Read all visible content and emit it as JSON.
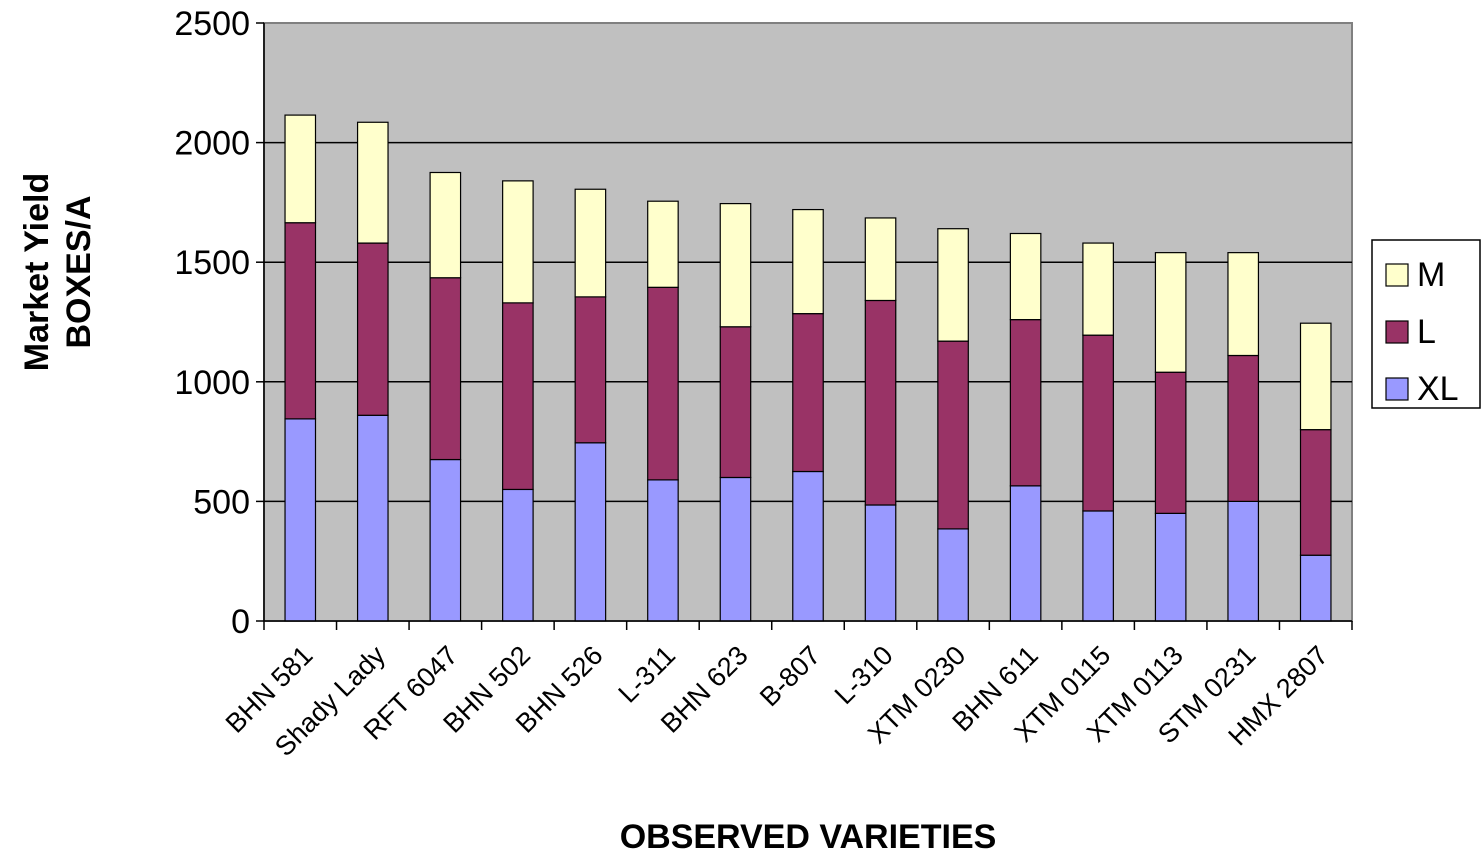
{
  "chart_data": {
    "type": "bar",
    "stacked": true,
    "title": "",
    "xlabel": "OBSERVED VARIETIES",
    "ylabel": [
      "Market Yield",
      "BOXES/A"
    ],
    "ylim": [
      0,
      2500
    ],
    "yticks": [
      0,
      500,
      1000,
      1500,
      2000,
      2500
    ],
    "grid": true,
    "legend_position": "right",
    "plot_background": "#C0C0C0",
    "categories": [
      "BHN 581",
      "Shady Lady",
      "RFT 6047",
      "BHN 502",
      "BHN 526",
      "L-311",
      "BHN 623",
      "B-807",
      "L-310",
      "XTM 0230",
      "BHN 611",
      "XTM 0115",
      "XTM 0113",
      "STM 0231",
      "HMX 2807"
    ],
    "series": [
      {
        "name": "XL",
        "color": "#9999FF",
        "values": [
          845,
          860,
          675,
          550,
          745,
          590,
          600,
          625,
          485,
          385,
          565,
          460,
          450,
          500,
          275
        ]
      },
      {
        "name": "L",
        "color": "#993366",
        "values": [
          820,
          720,
          760,
          780,
          610,
          805,
          630,
          660,
          855,
          785,
          695,
          735,
          590,
          610,
          525
        ]
      },
      {
        "name": "M",
        "color": "#FFFFCC",
        "values": [
          450,
          505,
          440,
          510,
          450,
          360,
          515,
          435,
          345,
          470,
          360,
          385,
          500,
          430,
          445
        ]
      }
    ],
    "legend_order": [
      "M",
      "L",
      "XL"
    ]
  }
}
